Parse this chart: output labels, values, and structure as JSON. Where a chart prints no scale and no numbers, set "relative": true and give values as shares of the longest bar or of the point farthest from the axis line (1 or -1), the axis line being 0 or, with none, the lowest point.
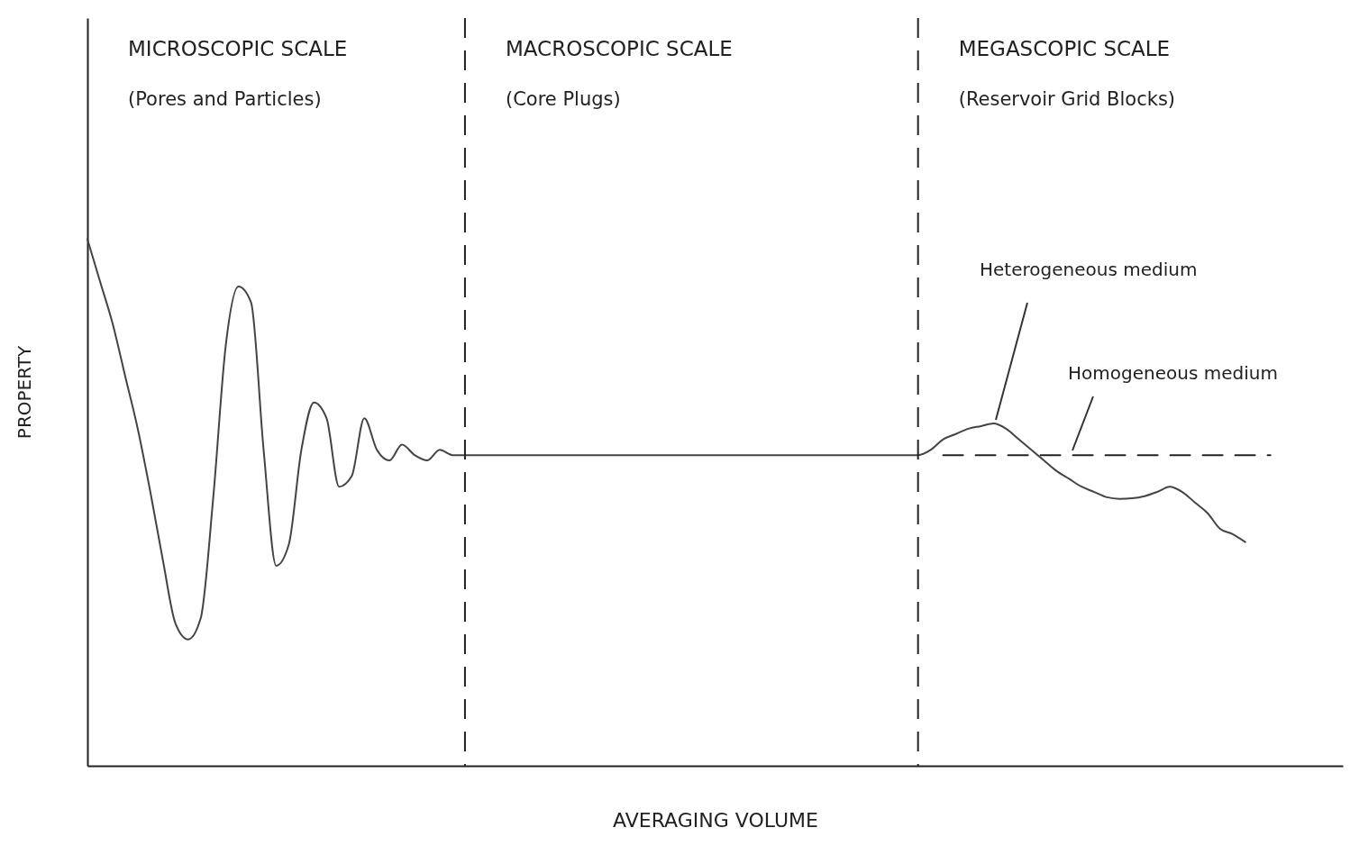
{
  "chart_data": {
    "type": "line",
    "relative": true,
    "xlabel": "AVERAGING VOLUME",
    "ylabel": "PROPERTY",
    "categories": [
      null,
      null,
      null,
      null,
      null,
      null,
      null,
      null,
      null,
      null,
      null,
      null,
      null,
      null,
      null,
      null,
      null,
      null,
      null,
      null,
      null,
      null,
      null,
      null,
      null,
      null,
      null,
      null,
      null,
      null,
      null,
      null,
      null,
      null,
      null,
      null,
      null,
      null,
      null,
      null,
      null,
      null,
      null,
      null,
      null,
      null,
      null,
      null,
      null,
      null,
      null,
      null,
      null,
      null,
      null,
      null,
      null,
      null,
      null,
      null,
      null,
      null,
      null,
      null,
      null,
      null,
      null,
      null,
      null,
      null,
      null,
      null,
      null,
      null,
      null,
      null,
      null,
      null,
      null,
      null,
      null,
      null,
      null,
      null,
      null,
      null,
      null,
      null,
      null,
      null,
      null,
      null,
      null,
      null,
      null
    ],
    "series": [
      {
        "color": "#444444",
        "line_style": "solid",
        "values": [
          1.0,
          0.92,
          0.84,
          0.74,
          0.64,
          0.52,
          0.39,
          0.27,
          0.24,
          0.28,
          0.51,
          0.8,
          0.91,
          0.88,
          0.6,
          0.38,
          0.42,
          0.6,
          0.69,
          0.66,
          0.53,
          0.55,
          0.66,
          0.6,
          0.58,
          0.61,
          0.59,
          0.58,
          0.6,
          0.59,
          0.59,
          0.59,
          0.59,
          0.59,
          0.59,
          0.59,
          0.59,
          0.59,
          0.59,
          0.59,
          0.59,
          0.59,
          0.59,
          0.59,
          0.59,
          0.59,
          0.59,
          0.59,
          0.59,
          0.59,
          0.59,
          0.59,
          0.59,
          0.59,
          0.59,
          0.59,
          0.59,
          0.59,
          0.59,
          0.59,
          0.59,
          0.59,
          0.59,
          0.59,
          0.59,
          0.59,
          0.59,
          0.6,
          0.62,
          0.63,
          0.64,
          0.645,
          0.65,
          0.64,
          0.62,
          0.6,
          0.58,
          0.56,
          0.545,
          0.53,
          0.52,
          0.51,
          0.507,
          0.508,
          0.512,
          0.52,
          0.53,
          0.52,
          0.5,
          0.48,
          0.45,
          0.44,
          0.425,
          null,
          null
        ]
      },
      {
        "color": "#222222",
        "line_style": "dashed",
        "values": [
          null,
          null,
          null,
          null,
          null,
          null,
          null,
          null,
          null,
          null,
          null,
          null,
          null,
          null,
          null,
          null,
          null,
          null,
          null,
          null,
          null,
          null,
          null,
          null,
          null,
          null,
          null,
          null,
          null,
          null,
          null,
          null,
          null,
          null,
          null,
          null,
          null,
          null,
          null,
          null,
          null,
          null,
          null,
          null,
          null,
          null,
          null,
          null,
          null,
          null,
          null,
          null,
          null,
          null,
          null,
          null,
          null,
          null,
          null,
          null,
          null,
          null,
          null,
          null,
          null,
          null,
          null,
          null,
          0.59,
          0.59,
          0.59,
          0.59,
          0.59,
          0.59,
          0.59,
          0.59,
          0.59,
          0.59,
          0.59,
          0.59,
          0.59,
          0.59,
          0.59,
          0.59,
          0.59,
          0.59,
          0.59,
          0.59,
          0.59,
          0.59,
          0.59,
          0.59,
          0.59,
          0.59,
          0.59
        ]
      }
    ],
    "annotations": [
      "MICROSCOPIC SCALE",
      "(Pores and Particles)",
      "MACROSCOPIC SCALE",
      "(Core Plugs)",
      "MEGASCOPIC SCALE",
      "(Reservoir Grid Blocks)",
      "Heterogeneous medium",
      "Homogeneous medium"
    ]
  }
}
